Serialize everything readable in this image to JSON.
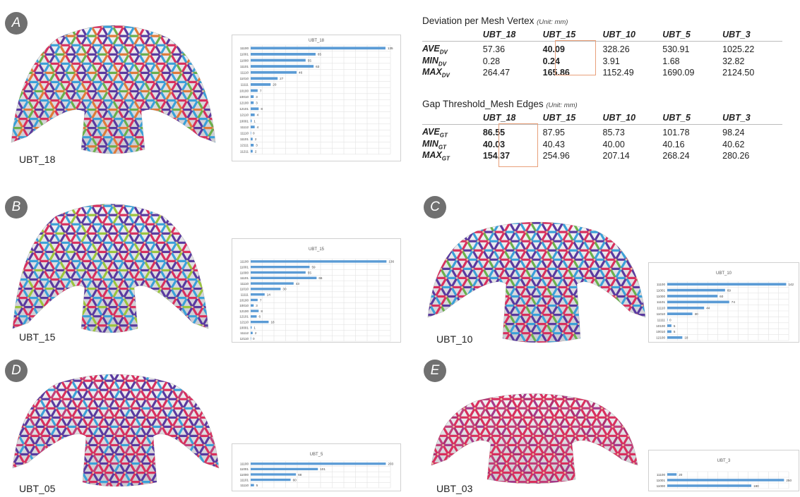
{
  "panels": [
    {
      "id": "A",
      "model": "UBT_18",
      "hist": {
        "title": "UBT_18",
        "max": 140,
        "rows": [
          {
            "label": "11100",
            "value": 135
          },
          {
            "label": "11001",
            "value": 65
          },
          {
            "label": "11000",
            "value": 55
          },
          {
            "label": "11101",
            "value": 63
          },
          {
            "label": "11110",
            "value": 46
          },
          {
            "label": "11010",
            "value": 27
          },
          {
            "label": "11111",
            "value": 20
          },
          {
            "label": "10100",
            "value": 7
          },
          {
            "label": "10010",
            "value": 3
          },
          {
            "label": "12100",
            "value": 3
          },
          {
            "label": "12101",
            "value": 8
          },
          {
            "label": "12110",
            "value": 4
          },
          {
            "label": "10001",
            "value": 1
          },
          {
            "label": "11112",
            "value": 4
          },
          {
            "label": "11110",
            "value": 0
          },
          {
            "label": "11101",
            "value": 2
          },
          {
            "label": "12111",
            "value": 3
          },
          {
            "label": "11211",
            "value": 2
          }
        ]
      }
    },
    {
      "id": "B",
      "model": "UBT_15",
      "hist": {
        "title": "UBT_15",
        "max": 140,
        "rows": [
          {
            "label": "11100",
            "value": 136
          },
          {
            "label": "11001",
            "value": 59
          },
          {
            "label": "11000",
            "value": 55
          },
          {
            "label": "11101",
            "value": 66
          },
          {
            "label": "11110",
            "value": 43
          },
          {
            "label": "11010",
            "value": 30
          },
          {
            "label": "11111",
            "value": 14
          },
          {
            "label": "10100",
            "value": 7
          },
          {
            "label": "10010",
            "value": 3
          },
          {
            "label": "12100",
            "value": 8
          },
          {
            "label": "12101",
            "value": 6
          },
          {
            "label": "12110",
            "value": 18
          },
          {
            "label": "10001",
            "value": 1
          },
          {
            "label": "11112",
            "value": 2
          },
          {
            "label": "12110",
            "value": 0
          }
        ]
      }
    },
    {
      "id": "C",
      "model": "UBT_10",
      "hist": {
        "title": "UBT_10",
        "max": 145,
        "rows": [
          {
            "label": "11100",
            "value": 142
          },
          {
            "label": "11001",
            "value": 69
          },
          {
            "label": "11000",
            "value": 60
          },
          {
            "label": "11101",
            "value": 74
          },
          {
            "label": "11110",
            "value": 44
          },
          {
            "label": "11010",
            "value": 30
          },
          {
            "label": "11111",
            "value": 0
          },
          {
            "label": "10100",
            "value": 5
          },
          {
            "label": "10010",
            "value": 5
          },
          {
            "label": "12100",
            "value": 18
          }
        ]
      }
    },
    {
      "id": "D",
      "model": "UBT_05",
      "hist": {
        "title": "UBT_5",
        "max": 210,
        "rows": [
          {
            "label": "11100",
            "value": 203
          },
          {
            "label": "11001",
            "value": 101
          },
          {
            "label": "11000",
            "value": 68
          },
          {
            "label": "11101",
            "value": 60
          },
          {
            "label": "11110",
            "value": 5
          }
        ]
      }
    },
    {
      "id": "E",
      "model": "UBT_03",
      "hist": {
        "title": "UBT_3",
        "max": 260,
        "rows": [
          {
            "label": "11100",
            "value": 20
          },
          {
            "label": "11001",
            "value": 250
          },
          {
            "label": "11000",
            "value": 180
          }
        ]
      }
    }
  ],
  "deviation_table": {
    "title": "Deviation per Mesh Vertex",
    "unit": "(Unit: mm)",
    "columns": [
      "UBT_18",
      "UBT_15",
      "UBT_10",
      "UBT_5",
      "UBT_3"
    ],
    "rows": [
      {
        "label": "AVE",
        "sub": "DV",
        "values": [
          "57.36",
          "40.09",
          "328.26",
          "530.91",
          "1025.22"
        ]
      },
      {
        "label": "MIN",
        "sub": "DV",
        "values": [
          "0.28",
          "0.24",
          "3.91",
          "1.68",
          "32.82"
        ]
      },
      {
        "label": "MAX",
        "sub": "DV",
        "values": [
          "264.47",
          "165.86",
          "1152.49",
          "1690.09",
          "2124.50"
        ]
      }
    ],
    "highlight_column": 1
  },
  "gap_table": {
    "title": "Gap Threshold_Mesh Edges",
    "unit": "(Unit: mm)",
    "columns": [
      "UBT_18",
      "UBT_15",
      "UBT_10",
      "UBT_5",
      "UBT_3"
    ],
    "rows": [
      {
        "label": "AVE",
        "sub": "GT",
        "values": [
          "86.55",
          "87.95",
          "85.73",
          "101.78",
          "98.24"
        ]
      },
      {
        "label": "MIN",
        "sub": "GT",
        "values": [
          "40.03",
          "40.43",
          "40.00",
          "40.16",
          "40.62"
        ]
      },
      {
        "label": "MAX",
        "sub": "GT",
        "values": [
          "154.37",
          "254.96",
          "207.14",
          "268.24",
          "280.26"
        ]
      }
    ],
    "highlight_column": 0
  },
  "colors": {
    "bar": "#5b9bd5",
    "grid": "#e3e3e3",
    "highlight": "#e8a07a",
    "badge": "#707070"
  }
}
